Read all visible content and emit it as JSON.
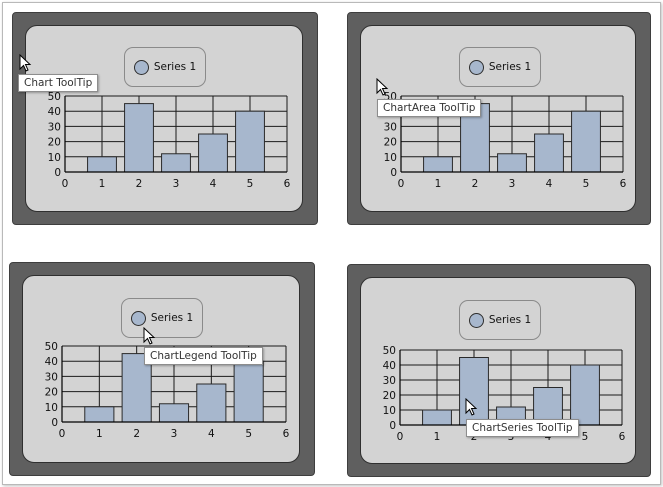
{
  "chart_data": [
    {
      "type": "bar",
      "series": [
        {
          "name": "Series 1",
          "values": [
            10,
            45,
            12,
            25,
            40
          ]
        }
      ],
      "x": [
        1,
        2,
        3,
        4,
        5
      ],
      "xlim": [
        0,
        6
      ],
      "ylim": [
        0,
        50
      ],
      "xticks": [
        "0",
        "1",
        "2",
        "3",
        "4",
        "5",
        "6"
      ],
      "yticks": [
        "0",
        "10",
        "20",
        "30",
        "40",
        "50"
      ],
      "grid": true,
      "legend": "top-center",
      "color": "#a7b7cd"
    },
    {
      "type": "bar",
      "series": [
        {
          "name": "Series 1",
          "values": [
            10,
            45,
            12,
            25,
            40
          ]
        }
      ],
      "x": [
        1,
        2,
        3,
        4,
        5
      ],
      "xlim": [
        0,
        6
      ],
      "ylim": [
        0,
        50
      ],
      "xticks": [
        "0",
        "1",
        "2",
        "3",
        "4",
        "5",
        "6"
      ],
      "yticks": [
        "0",
        "10",
        "20",
        "30",
        "40",
        "50"
      ],
      "grid": true,
      "legend": "top-center",
      "color": "#a7b7cd"
    },
    {
      "type": "bar",
      "series": [
        {
          "name": "Series 1",
          "values": [
            10,
            45,
            12,
            25,
            40
          ]
        }
      ],
      "x": [
        1,
        2,
        3,
        4,
        5
      ],
      "xlim": [
        0,
        6
      ],
      "ylim": [
        0,
        50
      ],
      "xticks": [
        "0",
        "1",
        "2",
        "3",
        "4",
        "5",
        "6"
      ],
      "yticks": [
        "0",
        "10",
        "20",
        "30",
        "40",
        "50"
      ],
      "grid": true,
      "legend": "top-center",
      "color": "#a7b7cd"
    },
    {
      "type": "bar",
      "series": [
        {
          "name": "Series 1",
          "values": [
            10,
            45,
            12,
            25,
            40
          ]
        }
      ],
      "x": [
        1,
        2,
        3,
        4,
        5
      ],
      "xlim": [
        0,
        6
      ],
      "ylim": [
        0,
        50
      ],
      "xticks": [
        "0",
        "1",
        "2",
        "3",
        "4",
        "5",
        "6"
      ],
      "yticks": [
        "0",
        "10",
        "20",
        "30",
        "40",
        "50"
      ],
      "grid": true,
      "legend": "top-center",
      "color": "#a7b7cd"
    }
  ],
  "tooltips": [
    "Chart ToolTip",
    "ChartArea ToolTip",
    "ChartLegend ToolTip",
    "ChartSeries ToolTip"
  ],
  "icons": {
    "pointer": "arrow-cursor-icon",
    "legend_marker": "circle-marker-icon"
  }
}
